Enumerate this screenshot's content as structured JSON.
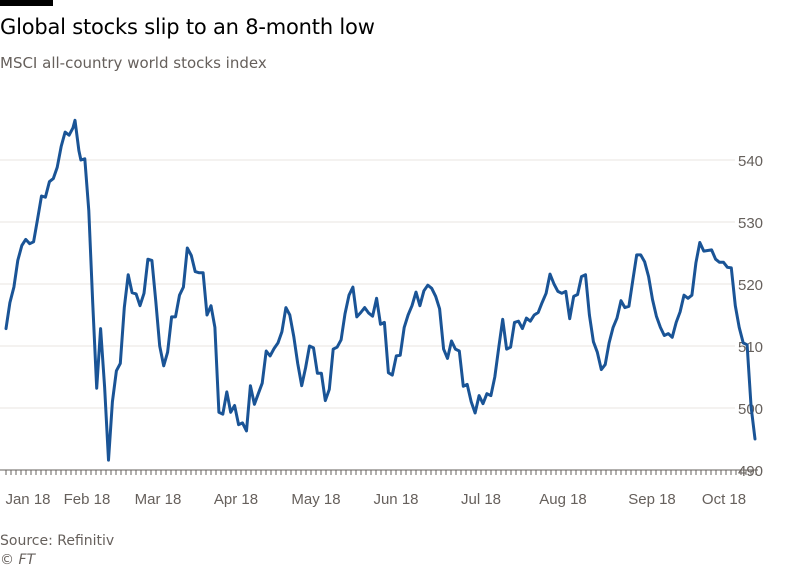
{
  "header": {
    "title": "Global stocks slip to an 8-month low",
    "subtitle": "MSCI all-country world stocks index"
  },
  "footer": {
    "source": "Source: Refinitiv",
    "credit": "© FT"
  },
  "colors": {
    "line": "#1a5496",
    "grid": "#e9e6e2",
    "axis_text": "#66605c",
    "axis_line": "#66605c",
    "accent_bar": "#000000"
  },
  "chart_data": {
    "type": "line",
    "title": "Global stocks slip to an 8-month low",
    "subtitle": "MSCI all-country world stocks index",
    "xlabel": "",
    "ylabel": "",
    "ylim": [
      490,
      545
    ],
    "grid": true,
    "legend": "none",
    "y_axis_side": "right",
    "y_ticks": [
      490,
      500,
      510,
      520,
      530,
      540
    ],
    "x_tick_labels": [
      "Jan 18",
      "Feb 18",
      "Mar 18",
      "Apr 18",
      "May 18",
      "Jun 18",
      "Jul 18",
      "Aug 18",
      "Sep 18",
      "Oct 18"
    ],
    "series": [
      {
        "values": [
          [
            0,
            512.8
          ],
          [
            2,
            517.0
          ],
          [
            4,
            519.5
          ],
          [
            6,
            523.8
          ],
          [
            8,
            526.2
          ],
          [
            10,
            527.2
          ],
          [
            12,
            526.5
          ],
          [
            14,
            526.8
          ],
          [
            16,
            530.4
          ],
          [
            18,
            534.2
          ],
          [
            20,
            534.0
          ],
          [
            22,
            536.5
          ],
          [
            24,
            537.0
          ],
          [
            26,
            538.8
          ],
          [
            28,
            542.2
          ],
          [
            30,
            544.5
          ],
          [
            32,
            544.0
          ],
          [
            34,
            545.2
          ],
          [
            35,
            546.4
          ],
          [
            37,
            541.5
          ],
          [
            38,
            540.0
          ],
          [
            40,
            540.2
          ],
          [
            42,
            531.8
          ],
          [
            44,
            517.0
          ],
          [
            46,
            503.2
          ],
          [
            48,
            512.8
          ],
          [
            50,
            503.4
          ],
          [
            52,
            491.6
          ],
          [
            54,
            501.0
          ],
          [
            56,
            506.0
          ],
          [
            58,
            507.2
          ],
          [
            60,
            516.2
          ],
          [
            62,
            521.5
          ],
          [
            64,
            518.6
          ],
          [
            66,
            518.4
          ],
          [
            68,
            516.5
          ],
          [
            70,
            518.5
          ],
          [
            72,
            524.0
          ],
          [
            74,
            523.8
          ],
          [
            76,
            517.2
          ],
          [
            78,
            510.0
          ],
          [
            80,
            506.8
          ],
          [
            82,
            509.0
          ],
          [
            84,
            514.7
          ],
          [
            86,
            514.7
          ],
          [
            88,
            518.2
          ],
          [
            90,
            519.5
          ],
          [
            92,
            525.8
          ],
          [
            94,
            524.6
          ],
          [
            96,
            522.0
          ],
          [
            98,
            521.8
          ],
          [
            100,
            521.8
          ],
          [
            102,
            515.0
          ],
          [
            104,
            516.5
          ],
          [
            106,
            513.0
          ],
          [
            108,
            499.3
          ],
          [
            110,
            499.0
          ],
          [
            112,
            502.6
          ],
          [
            114,
            499.3
          ],
          [
            116,
            500.4
          ],
          [
            118,
            497.3
          ],
          [
            120,
            497.6
          ],
          [
            122,
            496.3
          ],
          [
            124,
            503.6
          ],
          [
            126,
            500.6
          ],
          [
            128,
            502.3
          ],
          [
            130,
            504.0
          ],
          [
            132,
            509.2
          ],
          [
            134,
            508.4
          ],
          [
            136,
            509.6
          ],
          [
            138,
            510.5
          ],
          [
            140,
            512.3
          ],
          [
            142,
            516.2
          ],
          [
            144,
            515.0
          ],
          [
            146,
            511.5
          ],
          [
            148,
            507.2
          ],
          [
            150,
            503.6
          ],
          [
            152,
            506.5
          ],
          [
            154,
            510.0
          ],
          [
            156,
            509.7
          ],
          [
            158,
            505.6
          ],
          [
            160,
            505.6
          ],
          [
            162,
            501.2
          ],
          [
            164,
            503.0
          ],
          [
            166,
            509.5
          ],
          [
            168,
            509.8
          ],
          [
            170,
            511.0
          ],
          [
            172,
            515.2
          ],
          [
            174,
            518.2
          ],
          [
            176,
            519.5
          ],
          [
            178,
            514.7
          ],
          [
            180,
            515.4
          ],
          [
            182,
            516.2
          ],
          [
            184,
            515.3
          ],
          [
            186,
            514.8
          ],
          [
            188,
            517.7
          ],
          [
            190,
            513.5
          ],
          [
            192,
            513.8
          ],
          [
            194,
            505.7
          ],
          [
            196,
            505.3
          ],
          [
            198,
            508.4
          ],
          [
            200,
            508.5
          ],
          [
            202,
            513.0
          ],
          [
            204,
            515.0
          ],
          [
            206,
            516.5
          ],
          [
            208,
            518.7
          ],
          [
            210,
            516.5
          ],
          [
            212,
            518.9
          ],
          [
            214,
            519.8
          ],
          [
            216,
            519.3
          ],
          [
            218,
            518.0
          ],
          [
            220,
            516.0
          ],
          [
            222,
            509.5
          ],
          [
            224,
            508.0
          ],
          [
            226,
            510.8
          ],
          [
            228,
            509.5
          ],
          [
            230,
            509.2
          ],
          [
            232,
            503.5
          ],
          [
            234,
            503.8
          ],
          [
            236,
            501.0
          ],
          [
            238,
            499.2
          ],
          [
            240,
            502.0
          ],
          [
            242,
            500.7
          ],
          [
            244,
            502.3
          ],
          [
            246,
            502.0
          ],
          [
            248,
            505.0
          ],
          [
            250,
            509.8
          ],
          [
            252,
            514.3
          ],
          [
            254,
            509.5
          ],
          [
            256,
            509.8
          ],
          [
            258,
            513.8
          ],
          [
            260,
            514.0
          ],
          [
            262,
            512.8
          ],
          [
            264,
            514.5
          ],
          [
            266,
            514.0
          ],
          [
            268,
            515.0
          ],
          [
            270,
            515.4
          ],
          [
            272,
            517.0
          ],
          [
            274,
            518.5
          ],
          [
            276,
            521.6
          ],
          [
            278,
            520.0
          ],
          [
            280,
            518.8
          ],
          [
            282,
            518.5
          ],
          [
            284,
            518.8
          ],
          [
            286,
            514.4
          ],
          [
            288,
            518.0
          ],
          [
            290,
            518.3
          ],
          [
            292,
            521.2
          ],
          [
            294,
            521.5
          ],
          [
            296,
            515.0
          ],
          [
            298,
            510.7
          ],
          [
            300,
            509.0
          ],
          [
            302,
            506.2
          ],
          [
            304,
            507.0
          ],
          [
            306,
            510.5
          ],
          [
            308,
            513.0
          ],
          [
            310,
            514.5
          ],
          [
            312,
            517.3
          ],
          [
            314,
            516.2
          ],
          [
            316,
            516.4
          ],
          [
            318,
            520.6
          ],
          [
            320,
            524.7
          ],
          [
            322,
            524.7
          ],
          [
            324,
            523.6
          ],
          [
            326,
            521.2
          ],
          [
            328,
            517.5
          ],
          [
            330,
            514.8
          ],
          [
            332,
            513.0
          ],
          [
            334,
            511.7
          ],
          [
            336,
            512.0
          ],
          [
            338,
            511.4
          ],
          [
            340,
            513.8
          ],
          [
            342,
            515.5
          ],
          [
            344,
            518.2
          ],
          [
            346,
            517.7
          ],
          [
            348,
            518.2
          ],
          [
            350,
            523.4
          ],
          [
            352,
            526.7
          ],
          [
            354,
            525.3
          ],
          [
            356,
            525.4
          ],
          [
            358,
            525.5
          ],
          [
            360,
            524.0
          ],
          [
            362,
            523.5
          ],
          [
            364,
            523.5
          ],
          [
            366,
            522.7
          ],
          [
            368,
            522.6
          ],
          [
            370,
            516.5
          ],
          [
            372,
            513.0
          ],
          [
            374,
            510.5
          ],
          [
            376,
            510.2
          ],
          [
            378,
            500.2
          ],
          [
            380,
            495.0
          ]
        ]
      }
    ]
  }
}
